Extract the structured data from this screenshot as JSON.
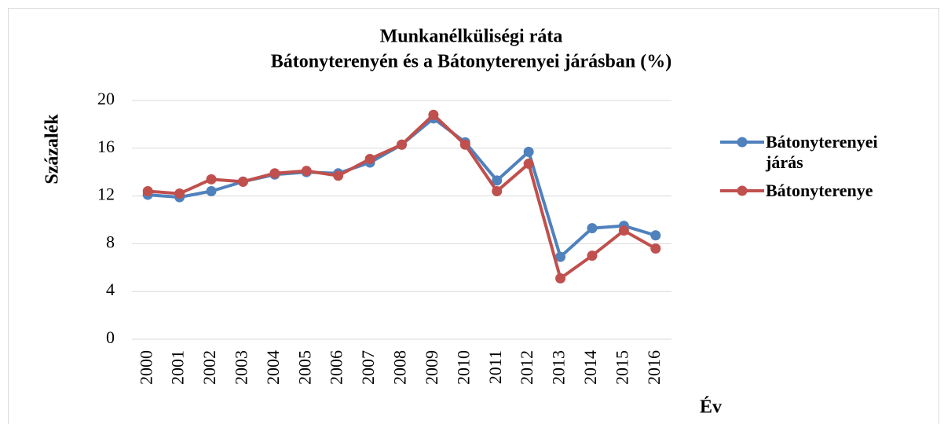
{
  "chart_data": {
    "type": "line",
    "title": [
      "Munkanélküliségi ráta",
      "Bátonyterenyén és a Bátonyterenyei járásban (%)"
    ],
    "y_label": "Százalék",
    "x_label": "Év",
    "categories": [
      "2000",
      "2001",
      "2002",
      "2003",
      "2004",
      "2005",
      "2006",
      "2007",
      "2008",
      "2009",
      "2010",
      "2011",
      "2012",
      "2013",
      "2014",
      "2015",
      "2016"
    ],
    "series": [
      {
        "name": "Bátonyterenyei járás",
        "color": "#4f81bd",
        "values": [
          12.1,
          11.9,
          12.4,
          13.2,
          13.8,
          14.0,
          13.9,
          14.8,
          16.3,
          18.5,
          16.5,
          13.3,
          15.7,
          6.9,
          9.3,
          9.5,
          8.7
        ]
      },
      {
        "name": "Bátonyterenye",
        "color": "#c0504d",
        "values": [
          12.4,
          12.2,
          13.4,
          13.2,
          13.9,
          14.1,
          13.7,
          15.1,
          16.3,
          18.8,
          16.3,
          12.4,
          14.7,
          5.1,
          7.0,
          9.1,
          7.6
        ]
      }
    ],
    "ylim": [
      0,
      20
    ],
    "yticks": [
      0,
      4,
      8,
      12,
      16,
      20
    ],
    "grid": true,
    "legend": "right"
  }
}
